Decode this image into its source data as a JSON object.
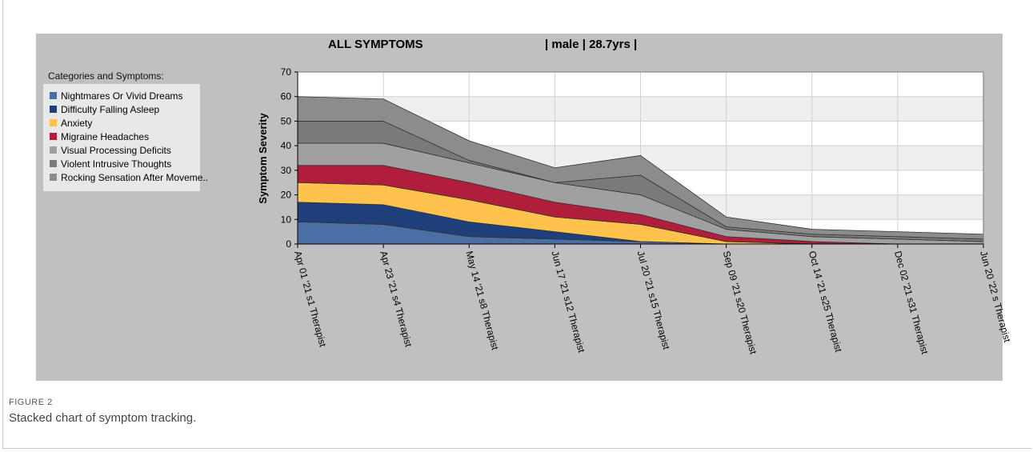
{
  "header": {
    "title": "ALL SYMPTOMS",
    "subtitle": "| male | 28.7yrs |"
  },
  "legend": {
    "heading": "Categories and Symptoms:"
  },
  "figure": {
    "label": "FIGURE 2",
    "caption": "Stacked chart of symptom tracking."
  },
  "chart_data": {
    "type": "area",
    "stacked": true,
    "title": "ALL SYMPTOMS",
    "subtitle": "| male | 28.7yrs |",
    "ylabel": "Symptom Severity",
    "xlabel": "",
    "ylim": [
      0,
      70
    ],
    "yticks": [
      0,
      10,
      20,
      30,
      40,
      50,
      60,
      70
    ],
    "grid": true,
    "legend_position": "left",
    "x": [
      "Apr 01 '21 s1 Therapist",
      "Apr 23 '21 s4 Therapist",
      "May 14 '21 s8 Therapist",
      "Jun 17 '21 s12 Therapist",
      "Jul 20 '21 s15 Therapist",
      "Sep 09 '21 s20 Therapist",
      "Oct 14 '21 s25 Therapist",
      "Dec 02 '21 s31 Therapist",
      "Jun 20 '22 s Therapist"
    ],
    "series": [
      {
        "name": "Nightmares Or Vivid Dreams",
        "color": "#4a6fa5",
        "values": [
          9,
          8,
          3,
          2,
          1,
          0,
          0,
          0,
          0
        ]
      },
      {
        "name": "Difficulty Falling Asleep",
        "color": "#1f3f7a",
        "values": [
          8,
          8,
          6,
          3,
          0,
          0,
          0,
          0,
          0
        ]
      },
      {
        "name": "Anxiety",
        "color": "#ffc34d",
        "values": [
          8,
          8,
          9,
          6,
          7,
          1,
          0,
          0,
          0
        ]
      },
      {
        "name": "Migraine Headaches",
        "color": "#b01e3c",
        "values": [
          7,
          8,
          7,
          6,
          4,
          2,
          1,
          0,
          0
        ]
      },
      {
        "name": "Visual Processing Deficits",
        "color": "#a0a0a0",
        "values": [
          9,
          9,
          8,
          8,
          8,
          3,
          2,
          2,
          1
        ]
      },
      {
        "name": "Violent Intrusive Thoughts",
        "color": "#7a7a7a",
        "values": [
          9,
          9,
          1,
          0,
          8,
          1,
          1,
          1,
          1
        ]
      },
      {
        "name": "Rocking Sensation After Moveme..",
        "color": "#8c8c8c",
        "values": [
          10,
          9,
          8,
          6,
          8,
          4,
          2,
          2,
          2
        ]
      }
    ]
  }
}
